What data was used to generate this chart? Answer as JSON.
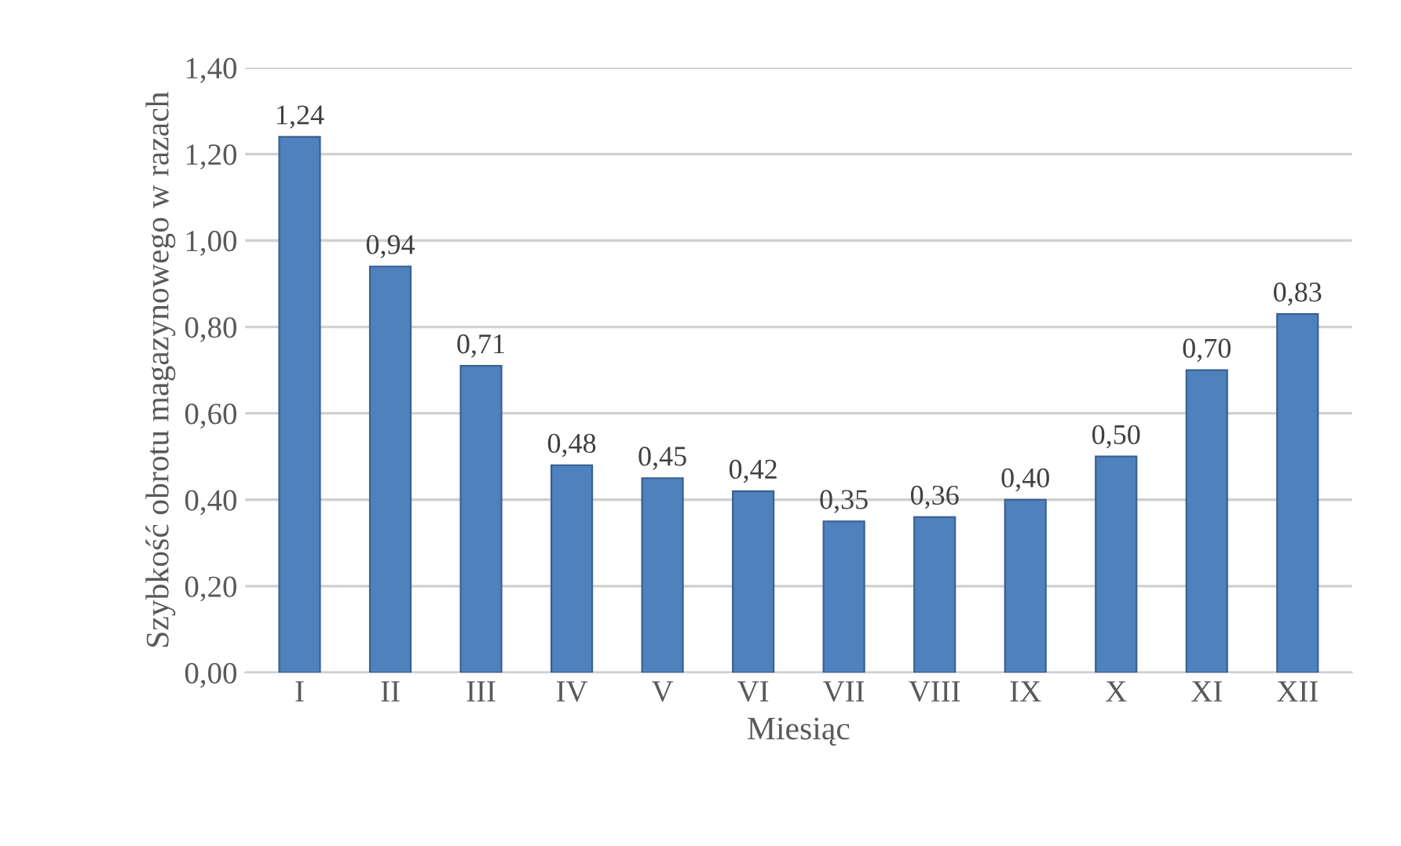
{
  "chart_data": {
    "type": "bar",
    "xlabel": "Miesiąc",
    "ylabel": "Szybkość obrotu magazynowego w razach",
    "categories": [
      "I",
      "II",
      "III",
      "IV",
      "V",
      "VI",
      "VII",
      "VIII",
      "IX",
      "X",
      "XI",
      "XII"
    ],
    "values": [
      1.24,
      0.94,
      0.71,
      0.48,
      0.45,
      0.42,
      0.35,
      0.36,
      0.4,
      0.5,
      0.7,
      0.83
    ],
    "value_labels": [
      "1,24",
      "0,94",
      "0,71",
      "0,48",
      "0,45",
      "0,42",
      "0,35",
      "0,36",
      "0,40",
      "0,50",
      "0,70",
      "0,83"
    ],
    "color": "#4f81bd",
    "ylim": [
      0,
      1.4
    ],
    "yticks": [
      {
        "value": 0,
        "label": "0,00"
      },
      {
        "value": 0.2,
        "label": "0,20"
      },
      {
        "value": 0.4,
        "label": "0,40"
      },
      {
        "value": 0.6,
        "label": "0,60"
      },
      {
        "value": 0.8,
        "label": "0,80"
      },
      {
        "value": 1.0,
        "label": "1,00"
      },
      {
        "value": 1.2,
        "label": "1,20"
      },
      {
        "value": 1.4,
        "label": "1,40"
      }
    ],
    "grid": "y",
    "legend": false
  }
}
